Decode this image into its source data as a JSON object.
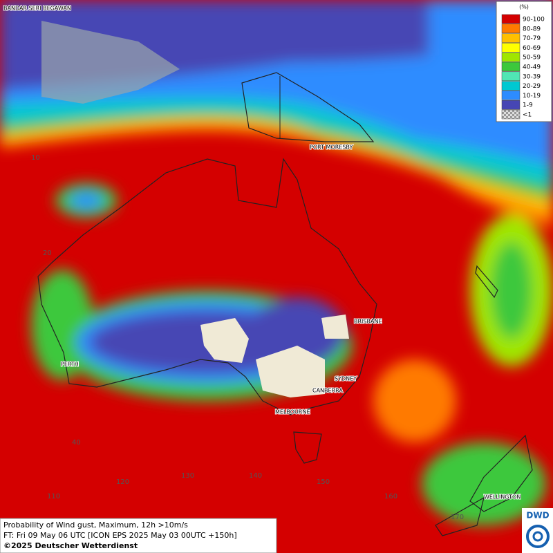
{
  "map": {
    "title": "Probability of Wind gust, Maximum, 12h >10m/s",
    "forecast": "FT: Fri 09 May 06 UTC [ICON EPS 2025 May 03 00UTC +150h]",
    "copyright": "©2025 Deutscher Wetterdienst",
    "logo": "DWD",
    "legend": {
      "unit": "(%)",
      "items": [
        {
          "label": "90-100",
          "color": "#d40000"
        },
        {
          "label": "80-89",
          "color": "#ff7a00"
        },
        {
          "label": "70-79",
          "color": "#ffc000"
        },
        {
          "label": "60-69",
          "color": "#ffff00"
        },
        {
          "label": "50-59",
          "color": "#a0e600"
        },
        {
          "label": "40-49",
          "color": "#3cc83c"
        },
        {
          "label": "30-39",
          "color": "#50e6b4"
        },
        {
          "label": "20-29",
          "color": "#00c8d2"
        },
        {
          "label": "10-19",
          "color": "#2d8cff"
        },
        {
          "label": "1-9",
          "color": "#4646b4"
        },
        {
          "label": "<1",
          "color": "#b4b4b4"
        }
      ]
    },
    "cities": [
      "BANDAR SERI BEGAWAN",
      "PORT MORESBY",
      "BRISBANE",
      "PERTH",
      "SYDNEY",
      "CANBERRA",
      "MELBOURNE",
      "WELLINGTON"
    ],
    "latitudes": [
      "10",
      "20",
      "40"
    ],
    "longitudes": [
      "110",
      "120",
      "130",
      "140",
      "150",
      "160",
      "170"
    ]
  }
}
